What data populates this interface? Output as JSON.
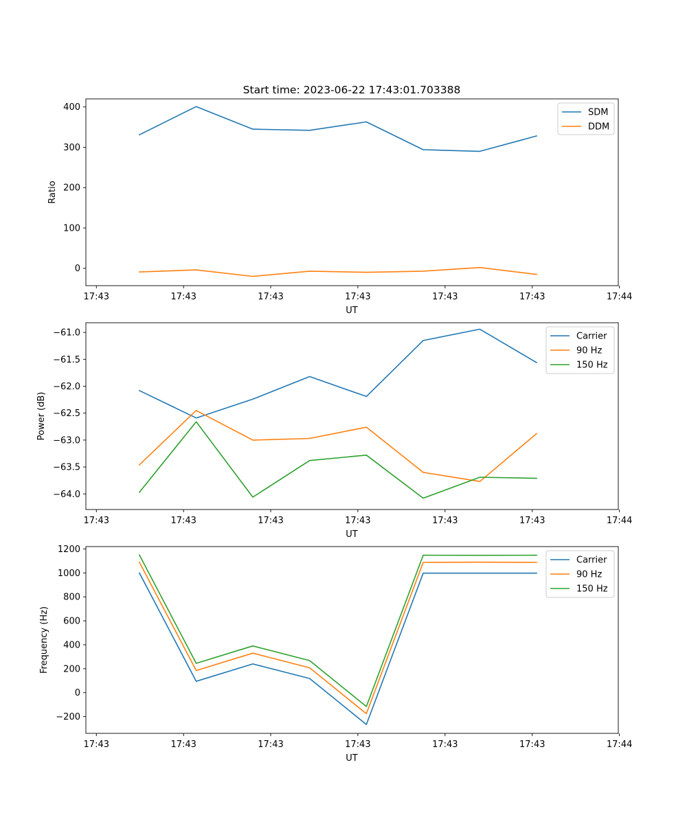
{
  "figure": {
    "title": "Start time: 2023-06-22 17:43:01.703388"
  },
  "colors": {
    "blue": "#1f77b4",
    "orange": "#ff7f0e",
    "green": "#2ca02c"
  },
  "chart_data": [
    {
      "type": "line",
      "title": "Start time: 2023-06-22 17:43:01.703388",
      "xlabel": "UT",
      "ylabel": "Ratio",
      "x_tick_labels": [
        "17:43",
        "17:43",
        "17:43",
        "17:43",
        "17:43",
        "17:43",
        "17:44"
      ],
      "y_ticks": [
        0,
        100,
        200,
        300,
        400
      ],
      "ylim": [
        -43,
        420
      ],
      "legend_position": "upper right",
      "grid": false,
      "series": [
        {
          "name": "SDM",
          "color": "#1f77b4",
          "values": [
            331,
            401,
            345,
            342,
            363,
            294,
            290,
            328
          ]
        },
        {
          "name": "DDM",
          "color": "#ff7f0e",
          "values": [
            -9,
            -4,
            -20,
            -7,
            -10,
            -7,
            2,
            -15
          ]
        }
      ]
    },
    {
      "type": "line",
      "title": "",
      "xlabel": "UT",
      "ylabel": "Power (dB)",
      "x_tick_labels": [
        "17:43",
        "17:43",
        "17:43",
        "17:43",
        "17:43",
        "17:43",
        "17:44"
      ],
      "y_ticks": [
        -64.0,
        -63.5,
        -63.0,
        -62.5,
        -62.0,
        -61.5,
        -61.0
      ],
      "ylim": [
        -64.29,
        -60.82
      ],
      "legend_position": "upper right",
      "grid": false,
      "series": [
        {
          "name": "Carrier",
          "color": "#1f77b4",
          "values": [
            -62.08,
            -62.59,
            -62.24,
            -61.82,
            -62.19,
            -61.15,
            -60.94,
            -61.56
          ]
        },
        {
          "name": "90 Hz",
          "color": "#ff7f0e",
          "values": [
            -63.46,
            -62.45,
            -63.0,
            -62.97,
            -62.76,
            -63.6,
            -63.77,
            -62.88
          ]
        },
        {
          "name": "150 Hz",
          "color": "#2ca02c",
          "values": [
            -63.97,
            -62.66,
            -64.06,
            -63.38,
            -63.28,
            -64.08,
            -63.69,
            -63.71
          ]
        }
      ]
    },
    {
      "type": "line",
      "title": "",
      "xlabel": "UT",
      "ylabel": "Frequency (Hz)",
      "x_tick_labels": [
        "17:43",
        "17:43",
        "17:43",
        "17:43",
        "17:43",
        "17:43",
        "17:44"
      ],
      "y_ticks": [
        -200,
        0,
        200,
        400,
        600,
        800,
        1000,
        1200
      ],
      "ylim": [
        -340,
        1220
      ],
      "legend_position": "upper right",
      "grid": false,
      "series": [
        {
          "name": "Carrier",
          "color": "#1f77b4",
          "values": [
            1000,
            95,
            240,
            118,
            -266,
            998,
            998,
            998
          ]
        },
        {
          "name": "90 Hz",
          "color": "#ff7f0e",
          "values": [
            1090,
            185,
            330,
            208,
            -176,
            1088,
            1090,
            1088
          ]
        },
        {
          "name": "150 Hz",
          "color": "#2ca02c",
          "values": [
            1150,
            245,
            390,
            268,
            -116,
            1148,
            1147,
            1148
          ]
        }
      ]
    }
  ]
}
